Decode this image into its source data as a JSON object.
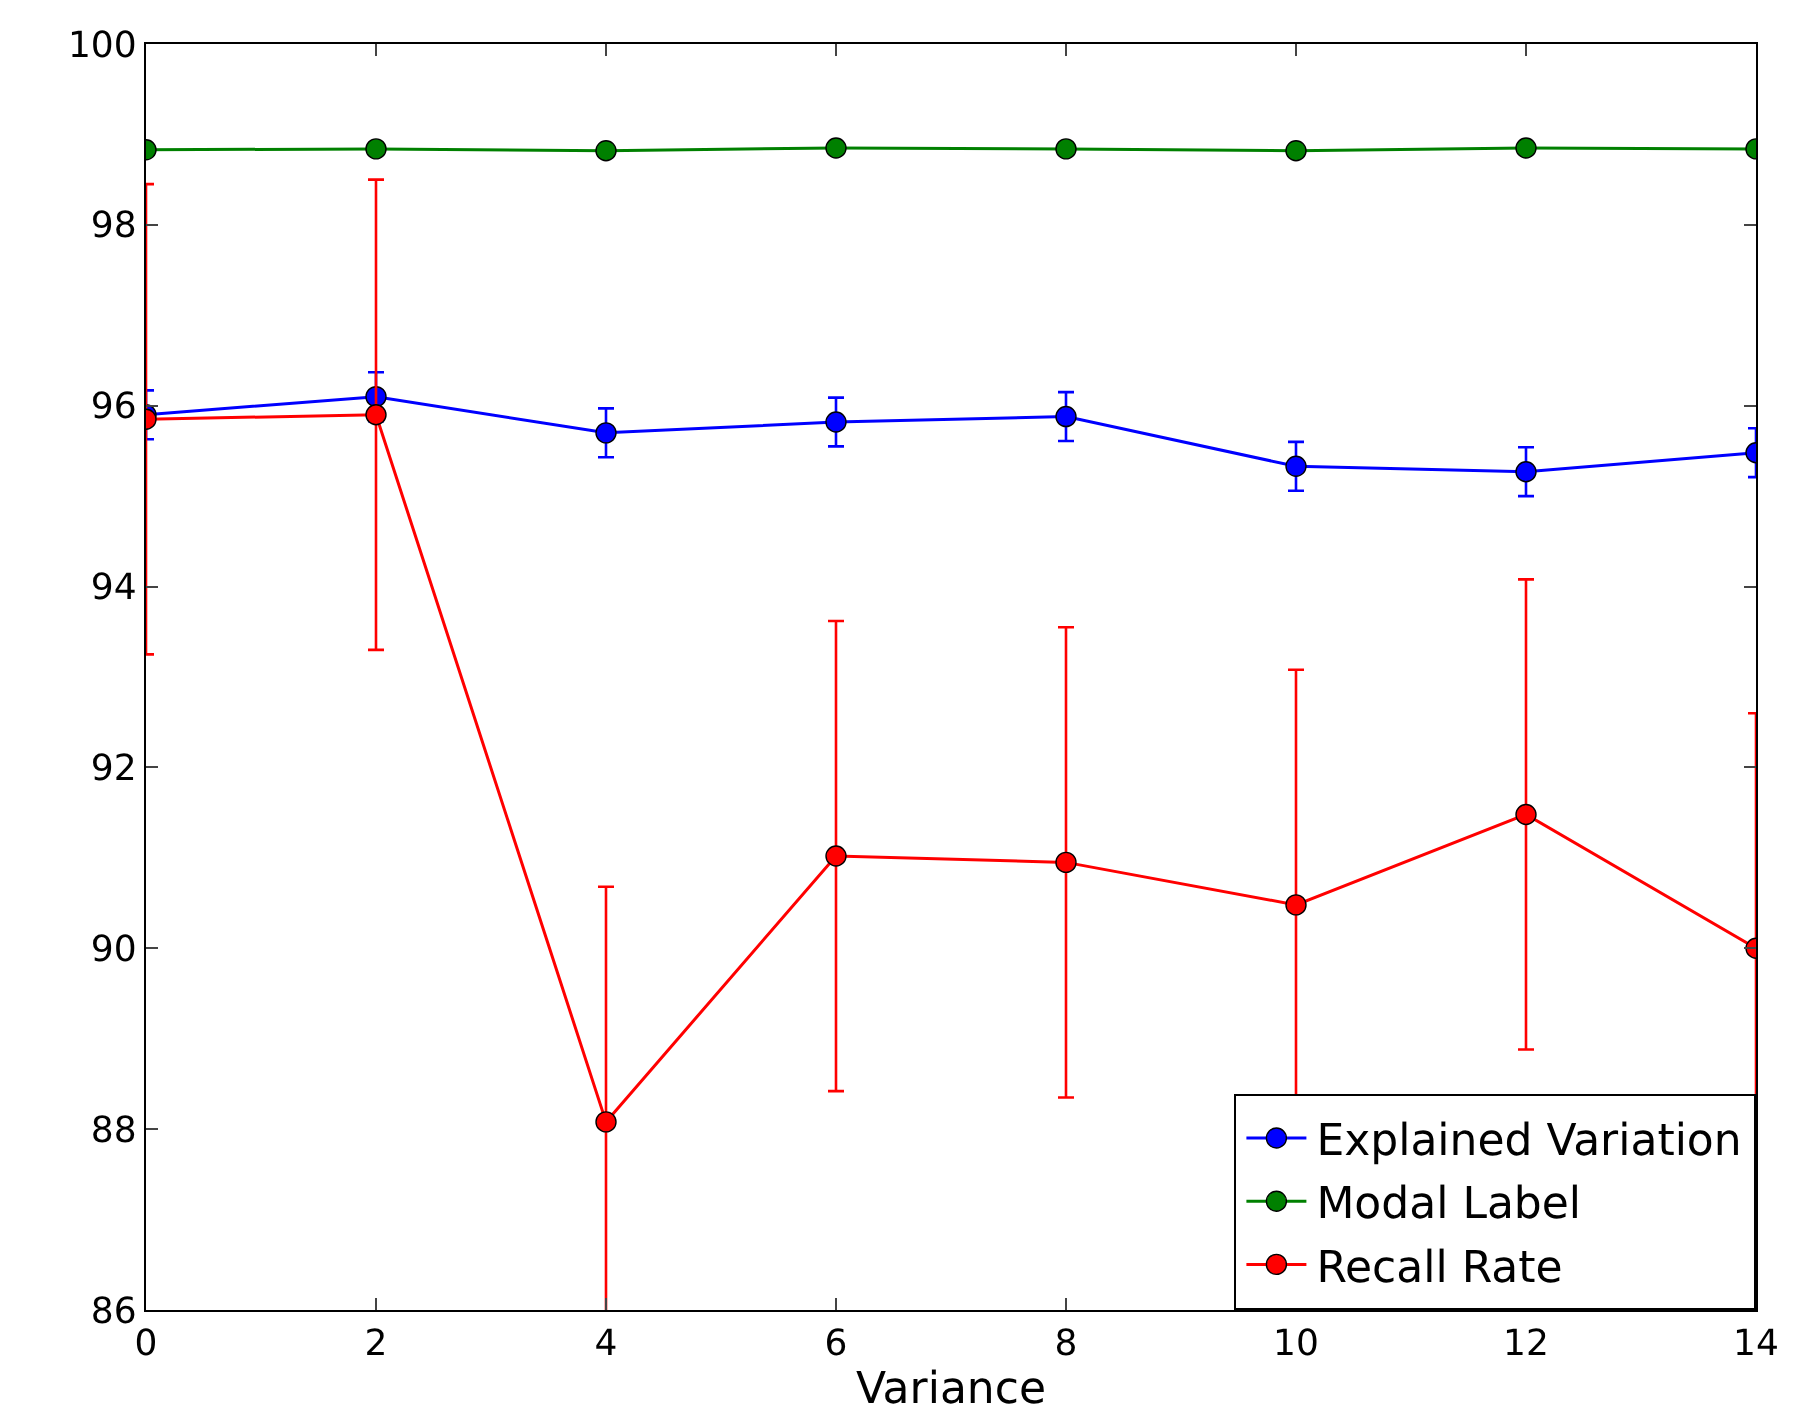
{
  "chart_data": {
    "type": "line",
    "xlabel": "Variance",
    "x": [
      0,
      2,
      4,
      6,
      8,
      10,
      12,
      14
    ],
    "series": [
      {
        "name": "Explained Variation",
        "color": "#0000ff",
        "values": [
          95.9,
          96.1,
          95.7,
          95.82,
          95.88,
          95.33,
          95.27,
          95.48
        ],
        "errors": [
          0.27,
          0.27,
          0.27,
          0.27,
          0.27,
          0.27,
          0.27,
          0.27
        ]
      },
      {
        "name": "Modal Label",
        "color": "#008000",
        "values": [
          98.83,
          98.84,
          98.82,
          98.85,
          98.84,
          98.82,
          98.85,
          98.84
        ]
      },
      {
        "name": "Recall Rate",
        "color": "#ff0000",
        "values": [
          95.85,
          95.9,
          88.08,
          91.02,
          90.95,
          90.48,
          91.48,
          90.0
        ],
        "errors": [
          2.6,
          2.6,
          2.6,
          2.6,
          2.6,
          2.6,
          2.6,
          2.6
        ]
      }
    ],
    "xlim": [
      0,
      14
    ],
    "xticks": [
      0,
      2,
      4,
      6,
      8,
      10,
      12,
      14
    ],
    "ylim": [
      86,
      100
    ],
    "yticks": [
      86,
      88,
      90,
      92,
      94,
      96,
      98,
      100
    ],
    "grid": false,
    "legend": "bottom right",
    "marker": "circle",
    "line_style": "solid"
  }
}
